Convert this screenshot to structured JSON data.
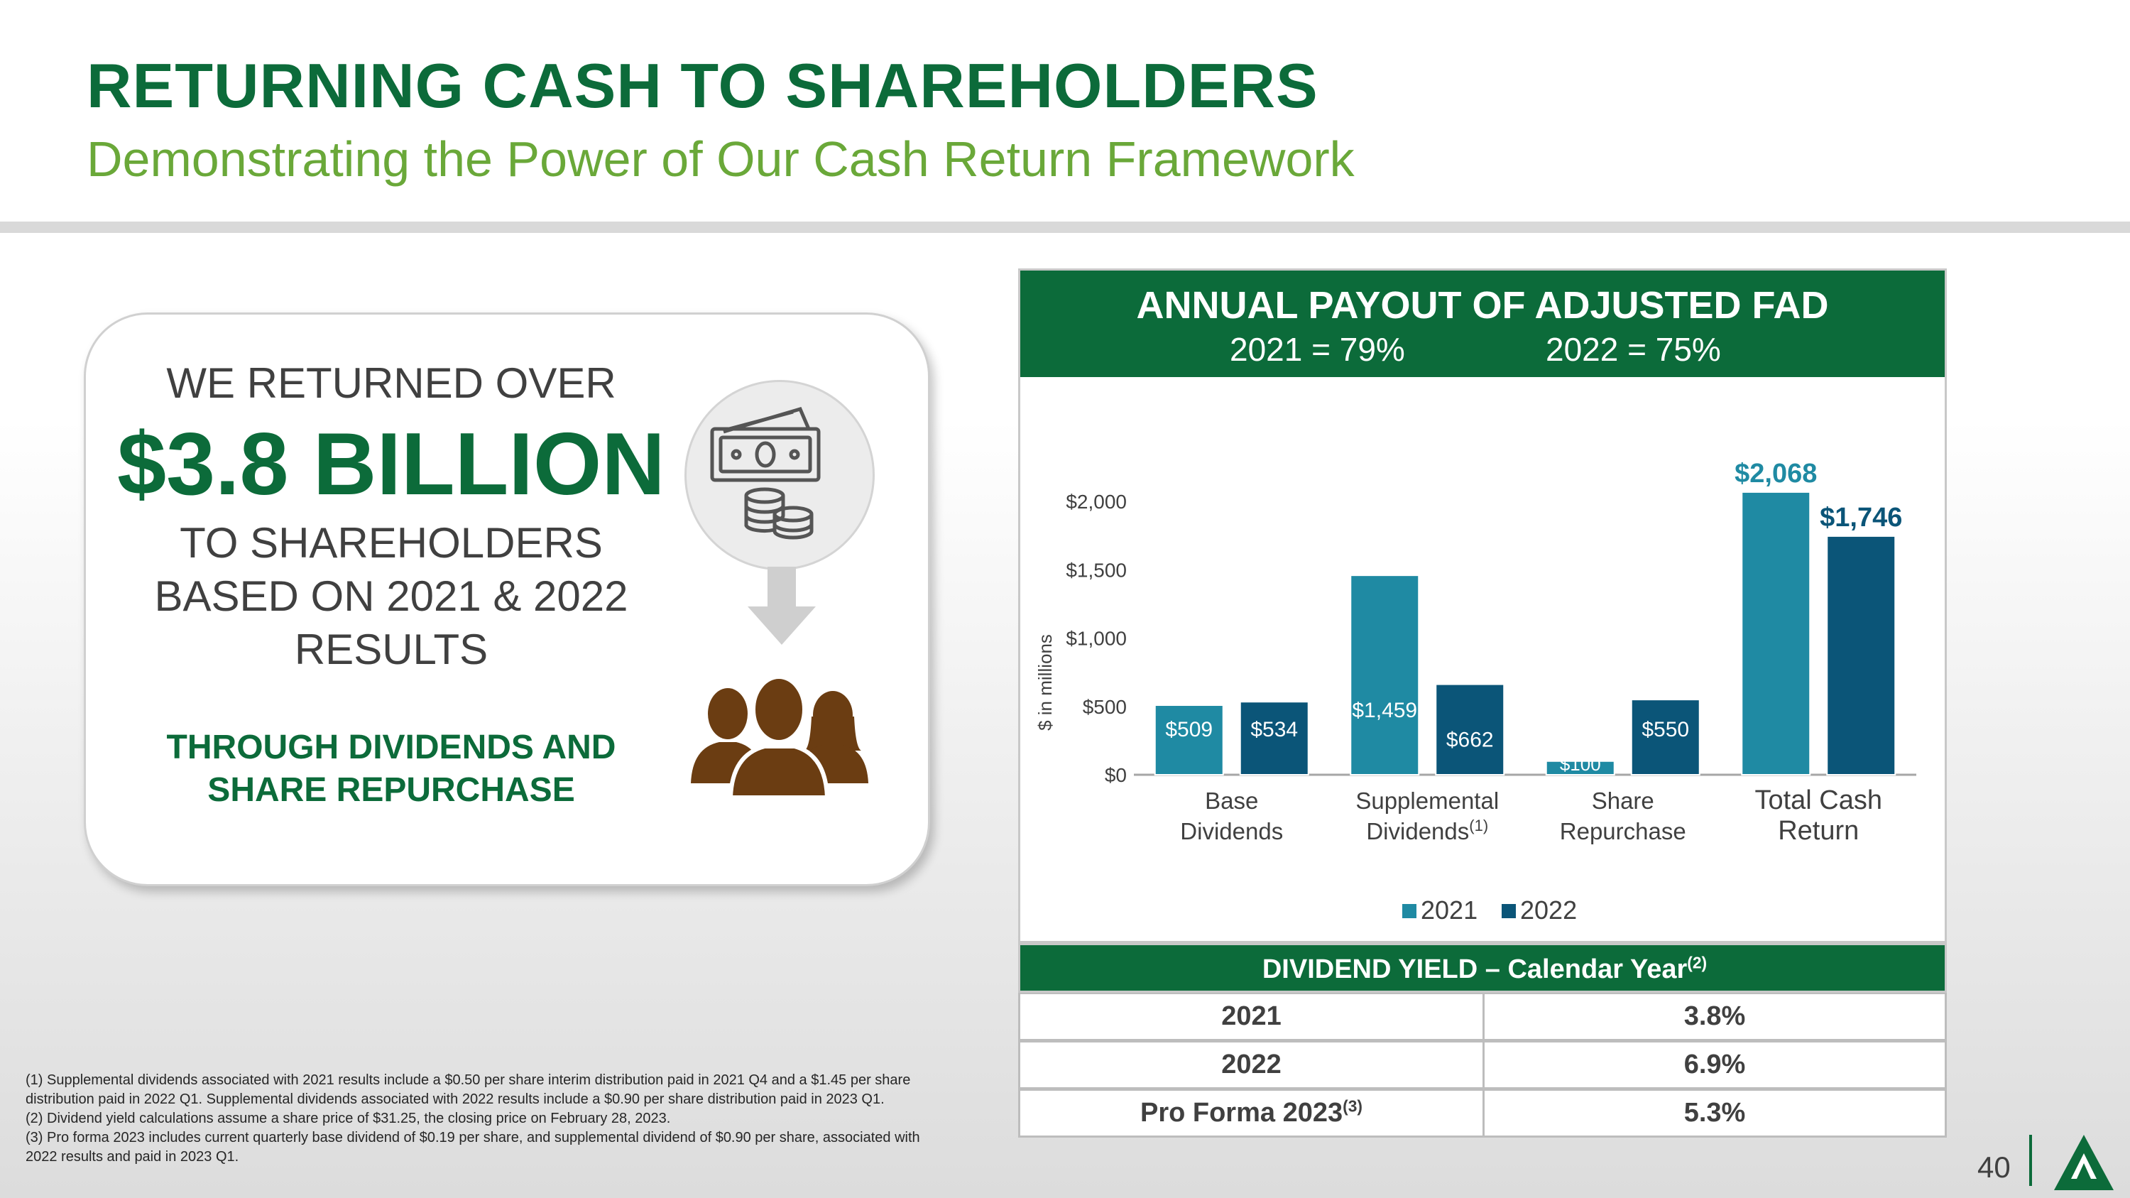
{
  "header": {
    "title": "RETURNING CASH TO SHAREHOLDERS",
    "subtitle": "Demonstrating the Power of Our Cash Return Framework"
  },
  "callout": {
    "line1": "WE RETURNED OVER",
    "amount": "$3.8 BILLION",
    "line2a": "TO SHAREHOLDERS",
    "line2b": "BASED ON 2021 & 2022",
    "line2c": "RESULTS",
    "line3a": "THROUGH DIVIDENDS AND",
    "line3b": "SHARE REPURCHASE",
    "icons": [
      "money-icon",
      "arrow-down-icon",
      "people-icon"
    ]
  },
  "chart_panel": {
    "heading": "ANNUAL PAYOUT OF ADJUSTED FAD",
    "payout_2021": "2021 = 79%",
    "payout_2022": "2022 = 75%"
  },
  "chart_data": {
    "type": "bar",
    "title": "ANNUAL PAYOUT OF ADJUSTED FAD",
    "ylabel": "$ in millions",
    "ylim": [
      0,
      2000
    ],
    "yticks": [
      "$0",
      "$500",
      "$1,000",
      "$1,500",
      "$2,000"
    ],
    "ytick_values": [
      0,
      500,
      1000,
      1500,
      2000
    ],
    "categories": [
      [
        "Base",
        "Dividends"
      ],
      [
        "Supplemental",
        "Dividends"
      ],
      [
        "Share",
        "Repurchase"
      ],
      [
        "Total Cash",
        "Return"
      ]
    ],
    "category_superscripts": [
      "",
      "(1)",
      "",
      ""
    ],
    "series": [
      {
        "name": "2021",
        "color": "#1f8aa3",
        "values": [
          509,
          1459,
          100,
          2068
        ],
        "labels": [
          "$509",
          "$1,459",
          "$100",
          "$2,068"
        ]
      },
      {
        "name": "2022",
        "color": "#0b5578",
        "values": [
          534,
          662,
          550,
          1746
        ],
        "labels": [
          "$534",
          "$662",
          "$550",
          "$1,746"
        ]
      }
    ],
    "legend_position": "bottom",
    "grid": false
  },
  "yield_table": {
    "heading": "DIVIDEND YIELD – Calendar Year",
    "heading_sup": "(2)",
    "rows": [
      {
        "label": "2021",
        "sup": "",
        "value": "3.8%"
      },
      {
        "label": "2022",
        "sup": "",
        "value": "6.9%"
      },
      {
        "label": "Pro Forma 2023",
        "sup": "(3)",
        "value": "5.3%"
      }
    ]
  },
  "footnotes": [
    "(1) Supplemental dividends associated with 2021 results include a $0.50 per share interim distribution paid in 2021 Q4 and a $1.45 per share distribution paid in 2022 Q1. Supplemental dividends associated with 2022 results include a $0.90 per share distribution paid in 2023 Q1.",
    "(2) Dividend yield calculations assume a share price of $31.25, the closing price on February 28, 2023.",
    "(3) Pro forma 2023 includes current quarterly base dividend of $0.19 per share, and supplemental dividend of $0.90 per share, associated with 2022 results and paid in 2023 Q1."
  ],
  "page_number": "40",
  "colors": {
    "brand_green": "#0c6b3a",
    "light_green": "#6aa839",
    "brown": "#6b3d12"
  }
}
